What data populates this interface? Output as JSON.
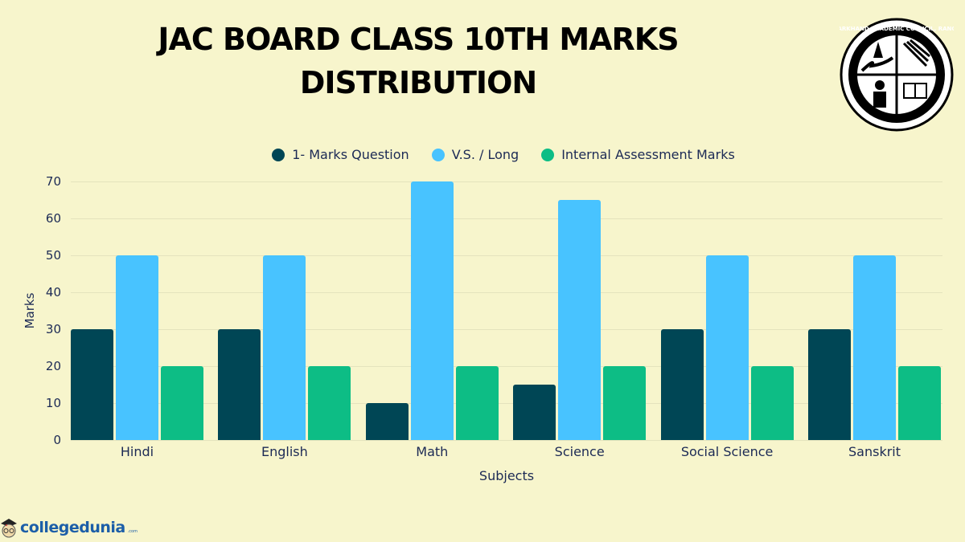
{
  "header": {
    "title_line1": "JAC BOARD CLASS 10TH MARKS",
    "title_line2": "DISTRIBUTION",
    "logo_text": "JHARKHAND ACADEMIC COUNCIL, RANCHI"
  },
  "legend": [
    {
      "label": "1- Marks Question",
      "color": "#004655"
    },
    {
      "label": "V.S. / Long",
      "color": "#48c3ff"
    },
    {
      "label": "Internal Assessment Marks",
      "color": "#0dbd85"
    }
  ],
  "axes": {
    "xlabel": "Subjects",
    "ylabel": "Marks",
    "yticks": [
      "0",
      "10",
      "20",
      "30",
      "40",
      "50",
      "60",
      "70"
    ]
  },
  "brand": {
    "name": "collegedunia",
    "tld": ".com"
  },
  "chart_data": {
    "type": "bar",
    "title": "JAC BOARD CLASS 10TH MARKS DISTRIBUTION",
    "xlabel": "Subjects",
    "ylabel": "Marks",
    "ylim": [
      0,
      70
    ],
    "yticks": [
      0,
      10,
      20,
      30,
      40,
      50,
      60,
      70
    ],
    "grid": true,
    "legend_position": "top",
    "categories": [
      "Hindi",
      "English",
      "Math",
      "Science",
      "Social Science",
      "Sanskrit"
    ],
    "series": [
      {
        "name": "1- Marks Question",
        "color": "#004655",
        "values": [
          30,
          30,
          10,
          15,
          30,
          30
        ]
      },
      {
        "name": "V.S. / Long",
        "color": "#48c3ff",
        "values": [
          50,
          50,
          70,
          65,
          50,
          50
        ]
      },
      {
        "name": "Internal Assessment Marks",
        "color": "#0dbd85",
        "values": [
          20,
          20,
          20,
          20,
          20,
          20
        ]
      }
    ]
  }
}
